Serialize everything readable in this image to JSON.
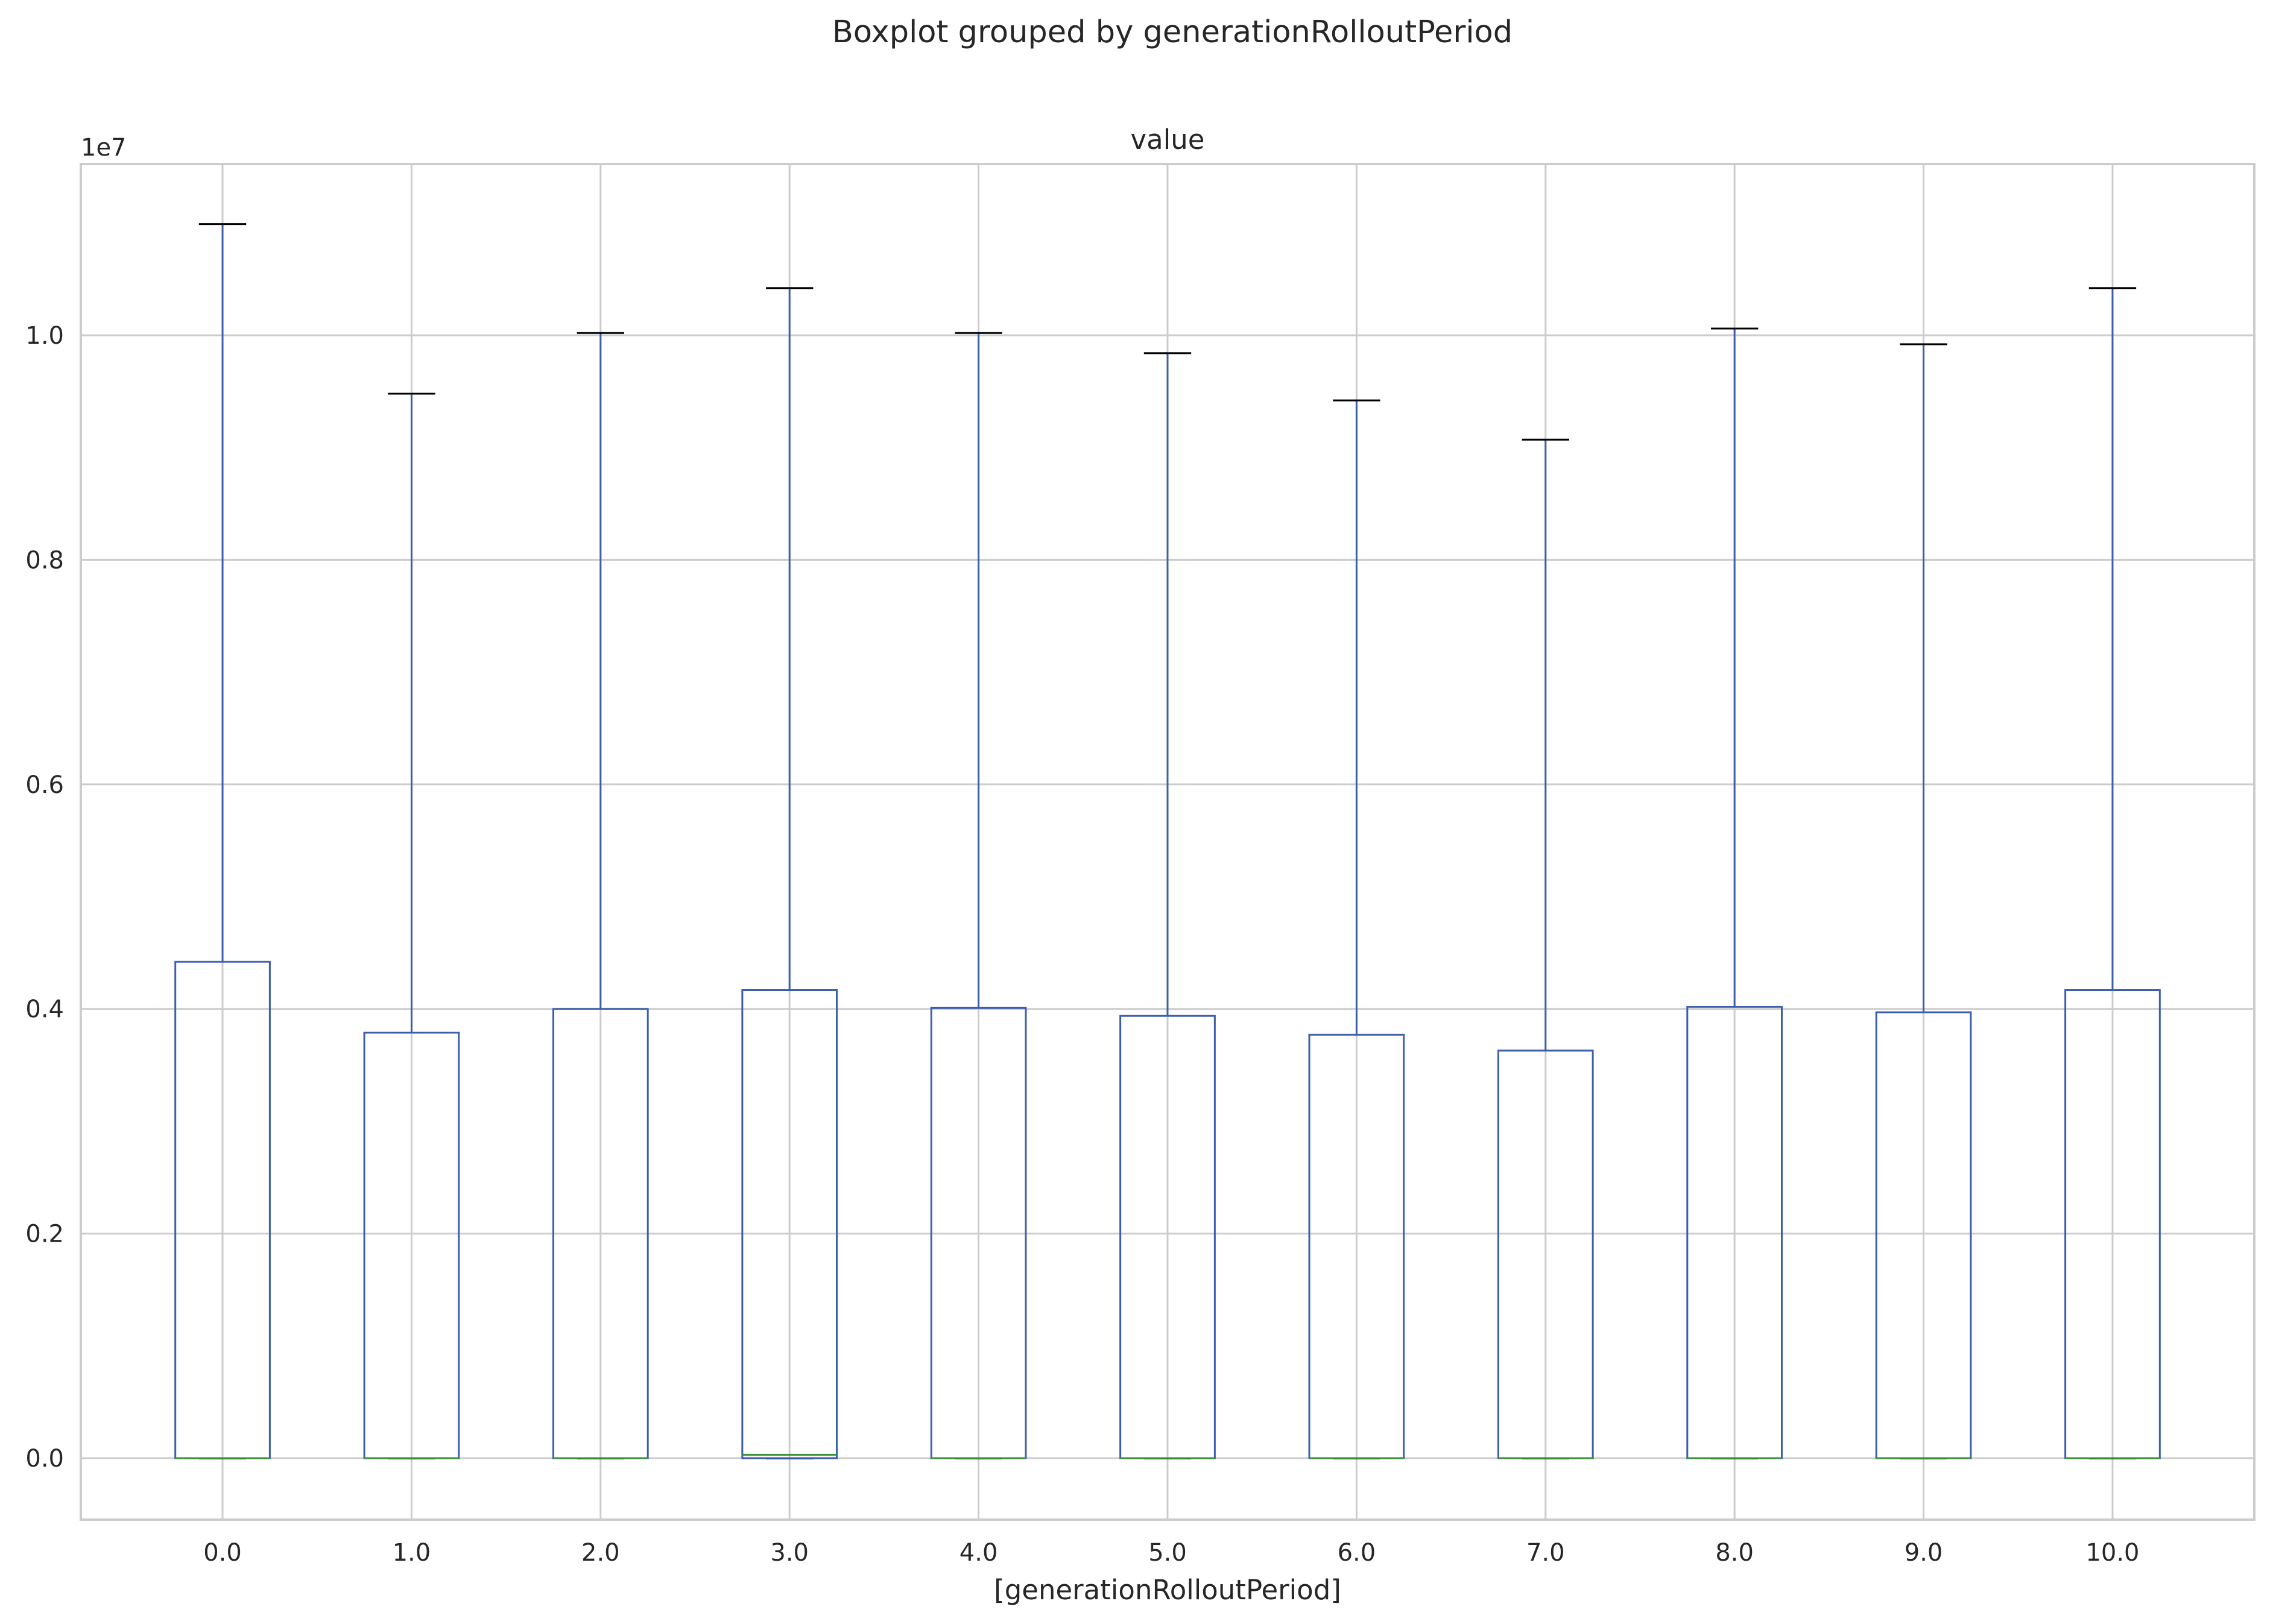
{
  "chart_data": {
    "type": "boxplot",
    "title": "Boxplot grouped by generationRolloutPeriod",
    "subtitle": "value",
    "xlabel": "[generationRolloutPeriod]",
    "ylabel": "",
    "y_offset_label": "1e7",
    "y_scale": 10000000,
    "ylim": [
      -550000,
      11700000
    ],
    "yticks": [
      0,
      2000000,
      4000000,
      6000000,
      8000000,
      10000000
    ],
    "ytick_labels": [
      "0.0",
      "0.2",
      "0.4",
      "0.6",
      "0.8",
      "1.0"
    ],
    "grid": true,
    "categories": [
      "0.0",
      "1.0",
      "2.0",
      "3.0",
      "4.0",
      "5.0",
      "6.0",
      "7.0",
      "8.0",
      "9.0",
      "10.0"
    ],
    "series": [
      {
        "whislo": 0,
        "q1": 0,
        "med": 0,
        "q3": 4420000,
        "whishi": 10990000
      },
      {
        "whislo": 0,
        "q1": 0,
        "med": 0,
        "q3": 3790000,
        "whishi": 9480000
      },
      {
        "whislo": 0,
        "q1": 0,
        "med": 0,
        "q3": 4000000,
        "whishi": 10020000
      },
      {
        "whislo": 0,
        "q1": 0,
        "med": 30000,
        "q3": 4170000,
        "whishi": 10420000
      },
      {
        "whislo": 0,
        "q1": 0,
        "med": 0,
        "q3": 4010000,
        "whishi": 10020000
      },
      {
        "whislo": 0,
        "q1": 0,
        "med": 0,
        "q3": 3940000,
        "whishi": 9840000
      },
      {
        "whislo": 0,
        "q1": 0,
        "med": 0,
        "q3": 3770000,
        "whishi": 9420000
      },
      {
        "whislo": 0,
        "q1": 0,
        "med": 0,
        "q3": 3630000,
        "whishi": 9070000
      },
      {
        "whislo": 0,
        "q1": 0,
        "med": 0,
        "q3": 4020000,
        "whishi": 10060000
      },
      {
        "whislo": 0,
        "q1": 0,
        "med": 0,
        "q3": 3970000,
        "whishi": 9920000
      },
      {
        "whislo": 0,
        "q1": 0,
        "med": 0,
        "q3": 4170000,
        "whishi": 10420000
      }
    ],
    "colors": {
      "box": "#3b5ead",
      "median": "#3a923a",
      "cap": "#000000",
      "grid": "#cccccc",
      "spine": "#cccccc",
      "text": "#262626"
    }
  }
}
